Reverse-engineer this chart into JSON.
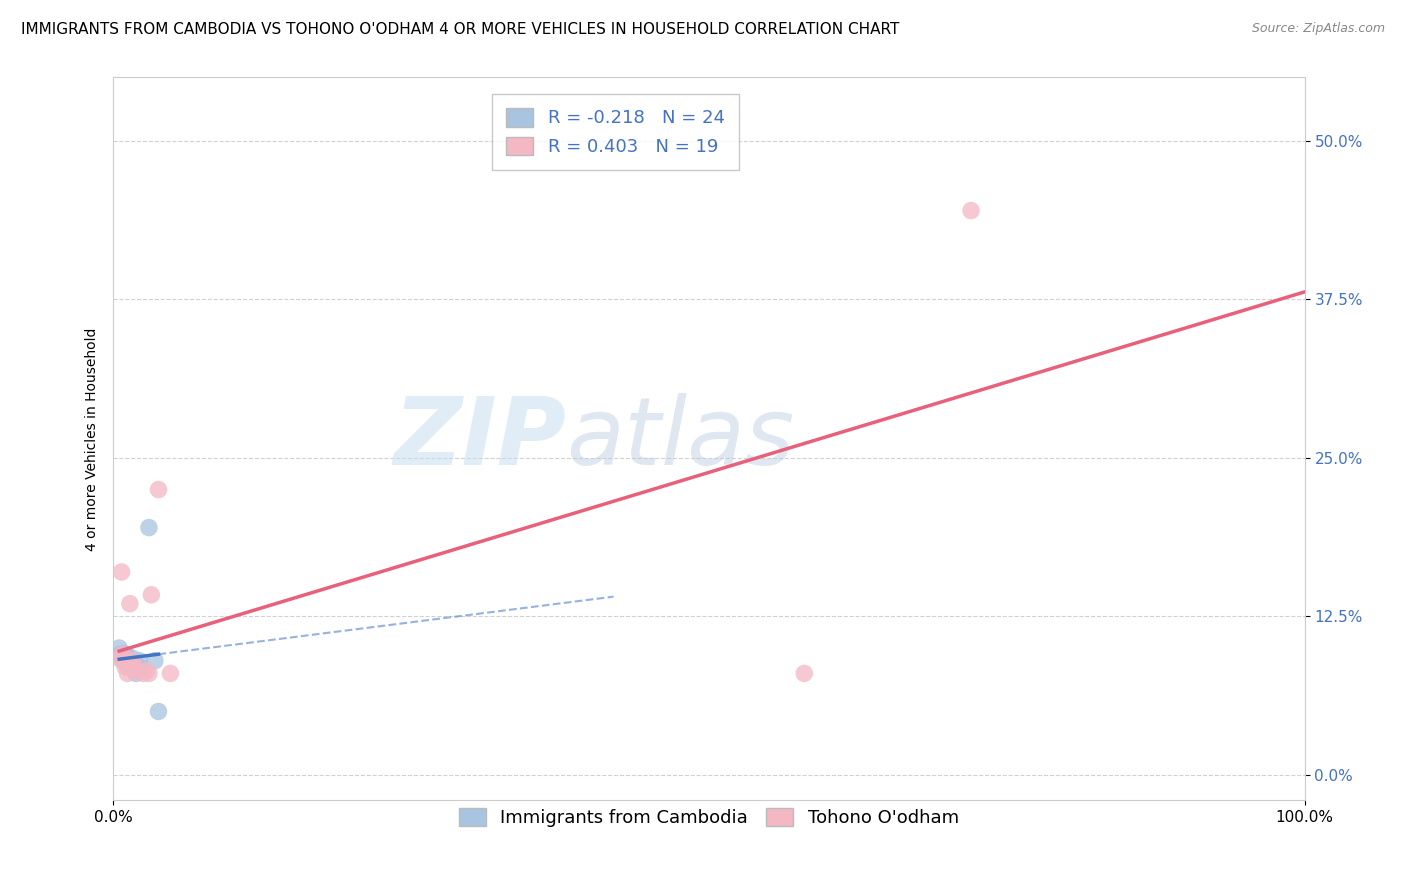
{
  "title": "IMMIGRANTS FROM CAMBODIA VS TOHONO O'ODHAM 4 OR MORE VEHICLES IN HOUSEHOLD CORRELATION CHART",
  "source": "Source: ZipAtlas.com",
  "ylabel": "4 or more Vehicles in Household",
  "xlabel": "",
  "xlim": [
    0.0,
    1.0
  ],
  "ylim": [
    -0.02,
    0.55
  ],
  "yticks": [
    0.0,
    0.125,
    0.25,
    0.375,
    0.5
  ],
  "ytick_labels": [
    "0.0%",
    "12.5%",
    "25.0%",
    "37.5%",
    "50.0%"
  ],
  "xticks": [
    0.0,
    1.0
  ],
  "xtick_labels": [
    "0.0%",
    "100.0%"
  ],
  "blue_R": "-0.218",
  "blue_N": "24",
  "pink_R": "0.403",
  "pink_N": "19",
  "legend_label_blue": "Immigrants from Cambodia",
  "legend_label_pink": "Tohono O'odham",
  "blue_color": "#a8c4e0",
  "pink_color": "#f4b8c4",
  "blue_line_color": "#4472c4",
  "pink_line_color": "#e8607a",
  "background_color": "#ffffff",
  "watermark_zip": "ZIP",
  "watermark_atlas": "atlas",
  "grid_color": "#cccccc",
  "title_fontsize": 11,
  "axis_label_fontsize": 10,
  "tick_fontsize": 11,
  "legend_fontsize": 13,
  "blue_scatter_x": [
    0.005,
    0.006,
    0.007,
    0.008,
    0.009,
    0.01,
    0.01,
    0.011,
    0.012,
    0.013,
    0.014,
    0.015,
    0.015,
    0.016,
    0.017,
    0.018,
    0.018,
    0.019,
    0.02,
    0.022,
    0.022,
    0.03,
    0.035,
    0.038
  ],
  "blue_scatter_y": [
    0.1,
    0.095,
    0.095,
    0.09,
    0.095,
    0.09,
    0.095,
    0.095,
    0.088,
    0.09,
    0.085,
    0.09,
    0.088,
    0.092,
    0.085,
    0.085,
    0.088,
    0.08,
    0.085,
    0.085,
    0.09,
    0.195,
    0.09,
    0.05
  ],
  "pink_scatter_x": [
    0.005,
    0.007,
    0.008,
    0.01,
    0.01,
    0.012,
    0.014,
    0.015,
    0.016,
    0.018,
    0.019,
    0.025,
    0.028,
    0.03,
    0.032,
    0.038,
    0.048,
    0.58,
    0.72
  ],
  "pink_scatter_y": [
    0.092,
    0.16,
    0.095,
    0.09,
    0.085,
    0.08,
    0.135,
    0.085,
    0.09,
    0.085,
    0.082,
    0.08,
    0.082,
    0.08,
    0.142,
    0.225,
    0.08,
    0.08,
    0.445
  ],
  "blue_line_x0": 0.005,
  "blue_line_x1": 0.038,
  "blue_line_xdash_end": 0.42,
  "pink_line_x0": 0.005,
  "pink_line_x1": 1.0
}
